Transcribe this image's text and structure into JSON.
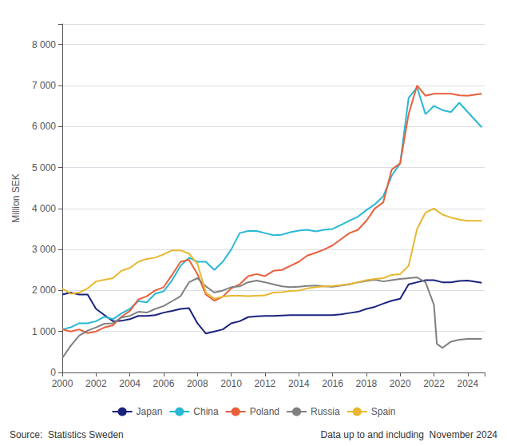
{
  "chart_data": {
    "type": "line",
    "ylabel": "Million SEK",
    "xlim": [
      2000,
      2025
    ],
    "ylim": [
      0,
      8500
    ],
    "xticks": [
      2000,
      2002,
      2004,
      2006,
      2008,
      2010,
      2012,
      2014,
      2016,
      2018,
      2020,
      2022,
      2024
    ],
    "yticks": [
      0,
      {
        "value": 1000,
        "label": "1 000"
      },
      {
        "value": 2000,
        "label": "2 000"
      },
      {
        "value": 3000,
        "label": "3 000"
      },
      {
        "value": 4000,
        "label": "4 000"
      },
      {
        "value": 5000,
        "label": "5 000"
      },
      {
        "value": 6000,
        "label": "6 000"
      },
      {
        "value": 7000,
        "label": "7 000"
      },
      {
        "value": 8000,
        "label": "8 000"
      }
    ],
    "grid": true,
    "legend": "bottom",
    "annotations": [
      "Source:  Statistics Sweden",
      "Data up to and including  November 2024"
    ],
    "series": [
      {
        "name": "Japan",
        "color": "#1a237e",
        "x": [
          2000,
          2000.5,
          2001,
          2001.5,
          2002,
          2002.5,
          2003,
          2003.5,
          2004,
          2004.5,
          2005,
          2005.5,
          2006,
          2006.5,
          2007,
          2007.5,
          2008,
          2008.5,
          2009,
          2009.5,
          2010,
          2010.5,
          2011,
          2011.5,
          2012,
          2012.5,
          2013,
          2013.5,
          2014,
          2014.5,
          2015,
          2015.5,
          2016,
          2016.5,
          2017,
          2017.5,
          2018,
          2018.5,
          2019,
          2019.5,
          2020,
          2020.5,
          2021,
          2021.5,
          2022,
          2022.5,
          2023,
          2023.5,
          2024,
          2024.83
        ],
        "values": [
          1900,
          1950,
          1900,
          1900,
          1550,
          1400,
          1250,
          1260,
          1300,
          1380,
          1380,
          1400,
          1460,
          1500,
          1550,
          1570,
          1200,
          950,
          1000,
          1050,
          1200,
          1250,
          1350,
          1370,
          1380,
          1380,
          1390,
          1400,
          1400,
          1400,
          1400,
          1400,
          1400,
          1420,
          1450,
          1480,
          1550,
          1600,
          1680,
          1750,
          1800,
          2150,
          2200,
          2250,
          2250,
          2200,
          2200,
          2230,
          2240,
          2190
        ]
      },
      {
        "name": "China",
        "color": "#29b8d4",
        "x": [
          2000,
          2000.5,
          2001,
          2001.5,
          2002,
          2002.5,
          2003,
          2003.5,
          2004,
          2004.5,
          2005,
          2005.5,
          2006,
          2006.5,
          2007,
          2007.5,
          2008,
          2008.5,
          2009,
          2009.5,
          2010,
          2010.5,
          2011,
          2011.5,
          2012,
          2012.5,
          2013,
          2013.5,
          2014,
          2014.5,
          2015,
          2015.5,
          2016,
          2016.5,
          2017,
          2017.5,
          2018,
          2018.5,
          2019,
          2019.5,
          2020,
          2020.5,
          2021,
          2021.5,
          2022,
          2022.5,
          2023,
          2023.5,
          2024,
          2024.83
        ],
        "values": [
          1050,
          1100,
          1200,
          1200,
          1250,
          1360,
          1300,
          1440,
          1550,
          1740,
          1710,
          1920,
          1980,
          2250,
          2600,
          2800,
          2700,
          2700,
          2500,
          2700,
          3000,
          3400,
          3450,
          3450,
          3400,
          3350,
          3360,
          3420,
          3460,
          3480,
          3440,
          3480,
          3500,
          3600,
          3700,
          3800,
          3960,
          4100,
          4300,
          4800,
          5100,
          6700,
          6950,
          6300,
          6500,
          6400,
          6350,
          6580,
          6350,
          5980
        ]
      },
      {
        "name": "Poland",
        "color": "#e8603c",
        "x": [
          2000,
          2000.5,
          2001,
          2001.5,
          2002,
          2002.5,
          2003,
          2003.5,
          2004,
          2004.5,
          2005,
          2005.5,
          2006,
          2006.5,
          2007,
          2007.5,
          2008,
          2008.5,
          2009,
          2009.5,
          2010,
          2010.5,
          2011,
          2011.5,
          2012,
          2012.5,
          2013,
          2013.5,
          2014,
          2014.5,
          2015,
          2015.5,
          2016,
          2016.5,
          2017,
          2017.5,
          2018,
          2018.5,
          2019,
          2019.5,
          2020,
          2020.5,
          2021,
          2021.5,
          2022,
          2022.5,
          2023,
          2023.5,
          2024,
          2024.83
        ],
        "values": [
          1050,
          1000,
          1050,
          960,
          1000,
          1100,
          1150,
          1360,
          1500,
          1780,
          1860,
          2000,
          2080,
          2380,
          2700,
          2750,
          2400,
          1900,
          1750,
          1850,
          2050,
          2150,
          2350,
          2400,
          2350,
          2480,
          2500,
          2600,
          2700,
          2850,
          2920,
          3000,
          3100,
          3250,
          3400,
          3480,
          3700,
          4000,
          4150,
          4950,
          5100,
          6300,
          7000,
          6750,
          6800,
          6800,
          6800,
          6760,
          6750,
          6800
        ]
      },
      {
        "name": "Russia",
        "color": "#808080",
        "x": [
          2000,
          2000.5,
          2001,
          2001.5,
          2002,
          2002.5,
          2003,
          2003.5,
          2004,
          2004.5,
          2005,
          2005.5,
          2006,
          2006.5,
          2007,
          2007.5,
          2008,
          2008.5,
          2009,
          2009.5,
          2010,
          2010.5,
          2011,
          2011.5,
          2012,
          2012.5,
          2013,
          2013.5,
          2014,
          2014.5,
          2015,
          2015.5,
          2016,
          2016.5,
          2017,
          2017.5,
          2018,
          2018.5,
          2019,
          2019.5,
          2020,
          2020.5,
          2021,
          2021.5,
          2022,
          2022.17,
          2022.5,
          2022.83,
          2023,
          2023.5,
          2024,
          2024.83
        ],
        "values": [
          350,
          650,
          900,
          1020,
          1100,
          1190,
          1200,
          1340,
          1380,
          1480,
          1460,
          1550,
          1620,
          1740,
          1860,
          2200,
          2300,
          2100,
          1950,
          2000,
          2080,
          2100,
          2200,
          2240,
          2200,
          2150,
          2100,
          2080,
          2090,
          2110,
          2120,
          2100,
          2090,
          2120,
          2150,
          2200,
          2230,
          2260,
          2220,
          2250,
          2280,
          2300,
          2320,
          2200,
          1650,
          700,
          600,
          700,
          750,
          800,
          820,
          820
        ]
      },
      {
        "name": "Spain",
        "color": "#e8b830",
        "x": [
          2000,
          2000.5,
          2001,
          2001.5,
          2002,
          2002.5,
          2003,
          2003.5,
          2004,
          2004.5,
          2005,
          2005.5,
          2006,
          2006.5,
          2007,
          2007.5,
          2008,
          2008.5,
          2009,
          2009.5,
          2010,
          2010.5,
          2011,
          2011.5,
          2012,
          2012.5,
          2013,
          2013.5,
          2014,
          2014.5,
          2015,
          2015.5,
          2016,
          2016.5,
          2017,
          2017.5,
          2018,
          2018.5,
          2019,
          2019.5,
          2020,
          2020.5,
          2021,
          2021.5,
          2022,
          2022.5,
          2023,
          2023.5,
          2024,
          2024.83
        ],
        "values": [
          2050,
          1920,
          1950,
          2050,
          2220,
          2260,
          2300,
          2480,
          2550,
          2700,
          2770,
          2800,
          2880,
          2980,
          2980,
          2900,
          2650,
          1950,
          1800,
          1850,
          1870,
          1870,
          1860,
          1870,
          1880,
          1950,
          1960,
          1990,
          2000,
          2050,
          2080,
          2100,
          2110,
          2130,
          2160,
          2200,
          2250,
          2280,
          2300,
          2380,
          2400,
          2600,
          3500,
          3900,
          4000,
          3850,
          3780,
          3730,
          3700,
          3700
        ]
      }
    ]
  }
}
